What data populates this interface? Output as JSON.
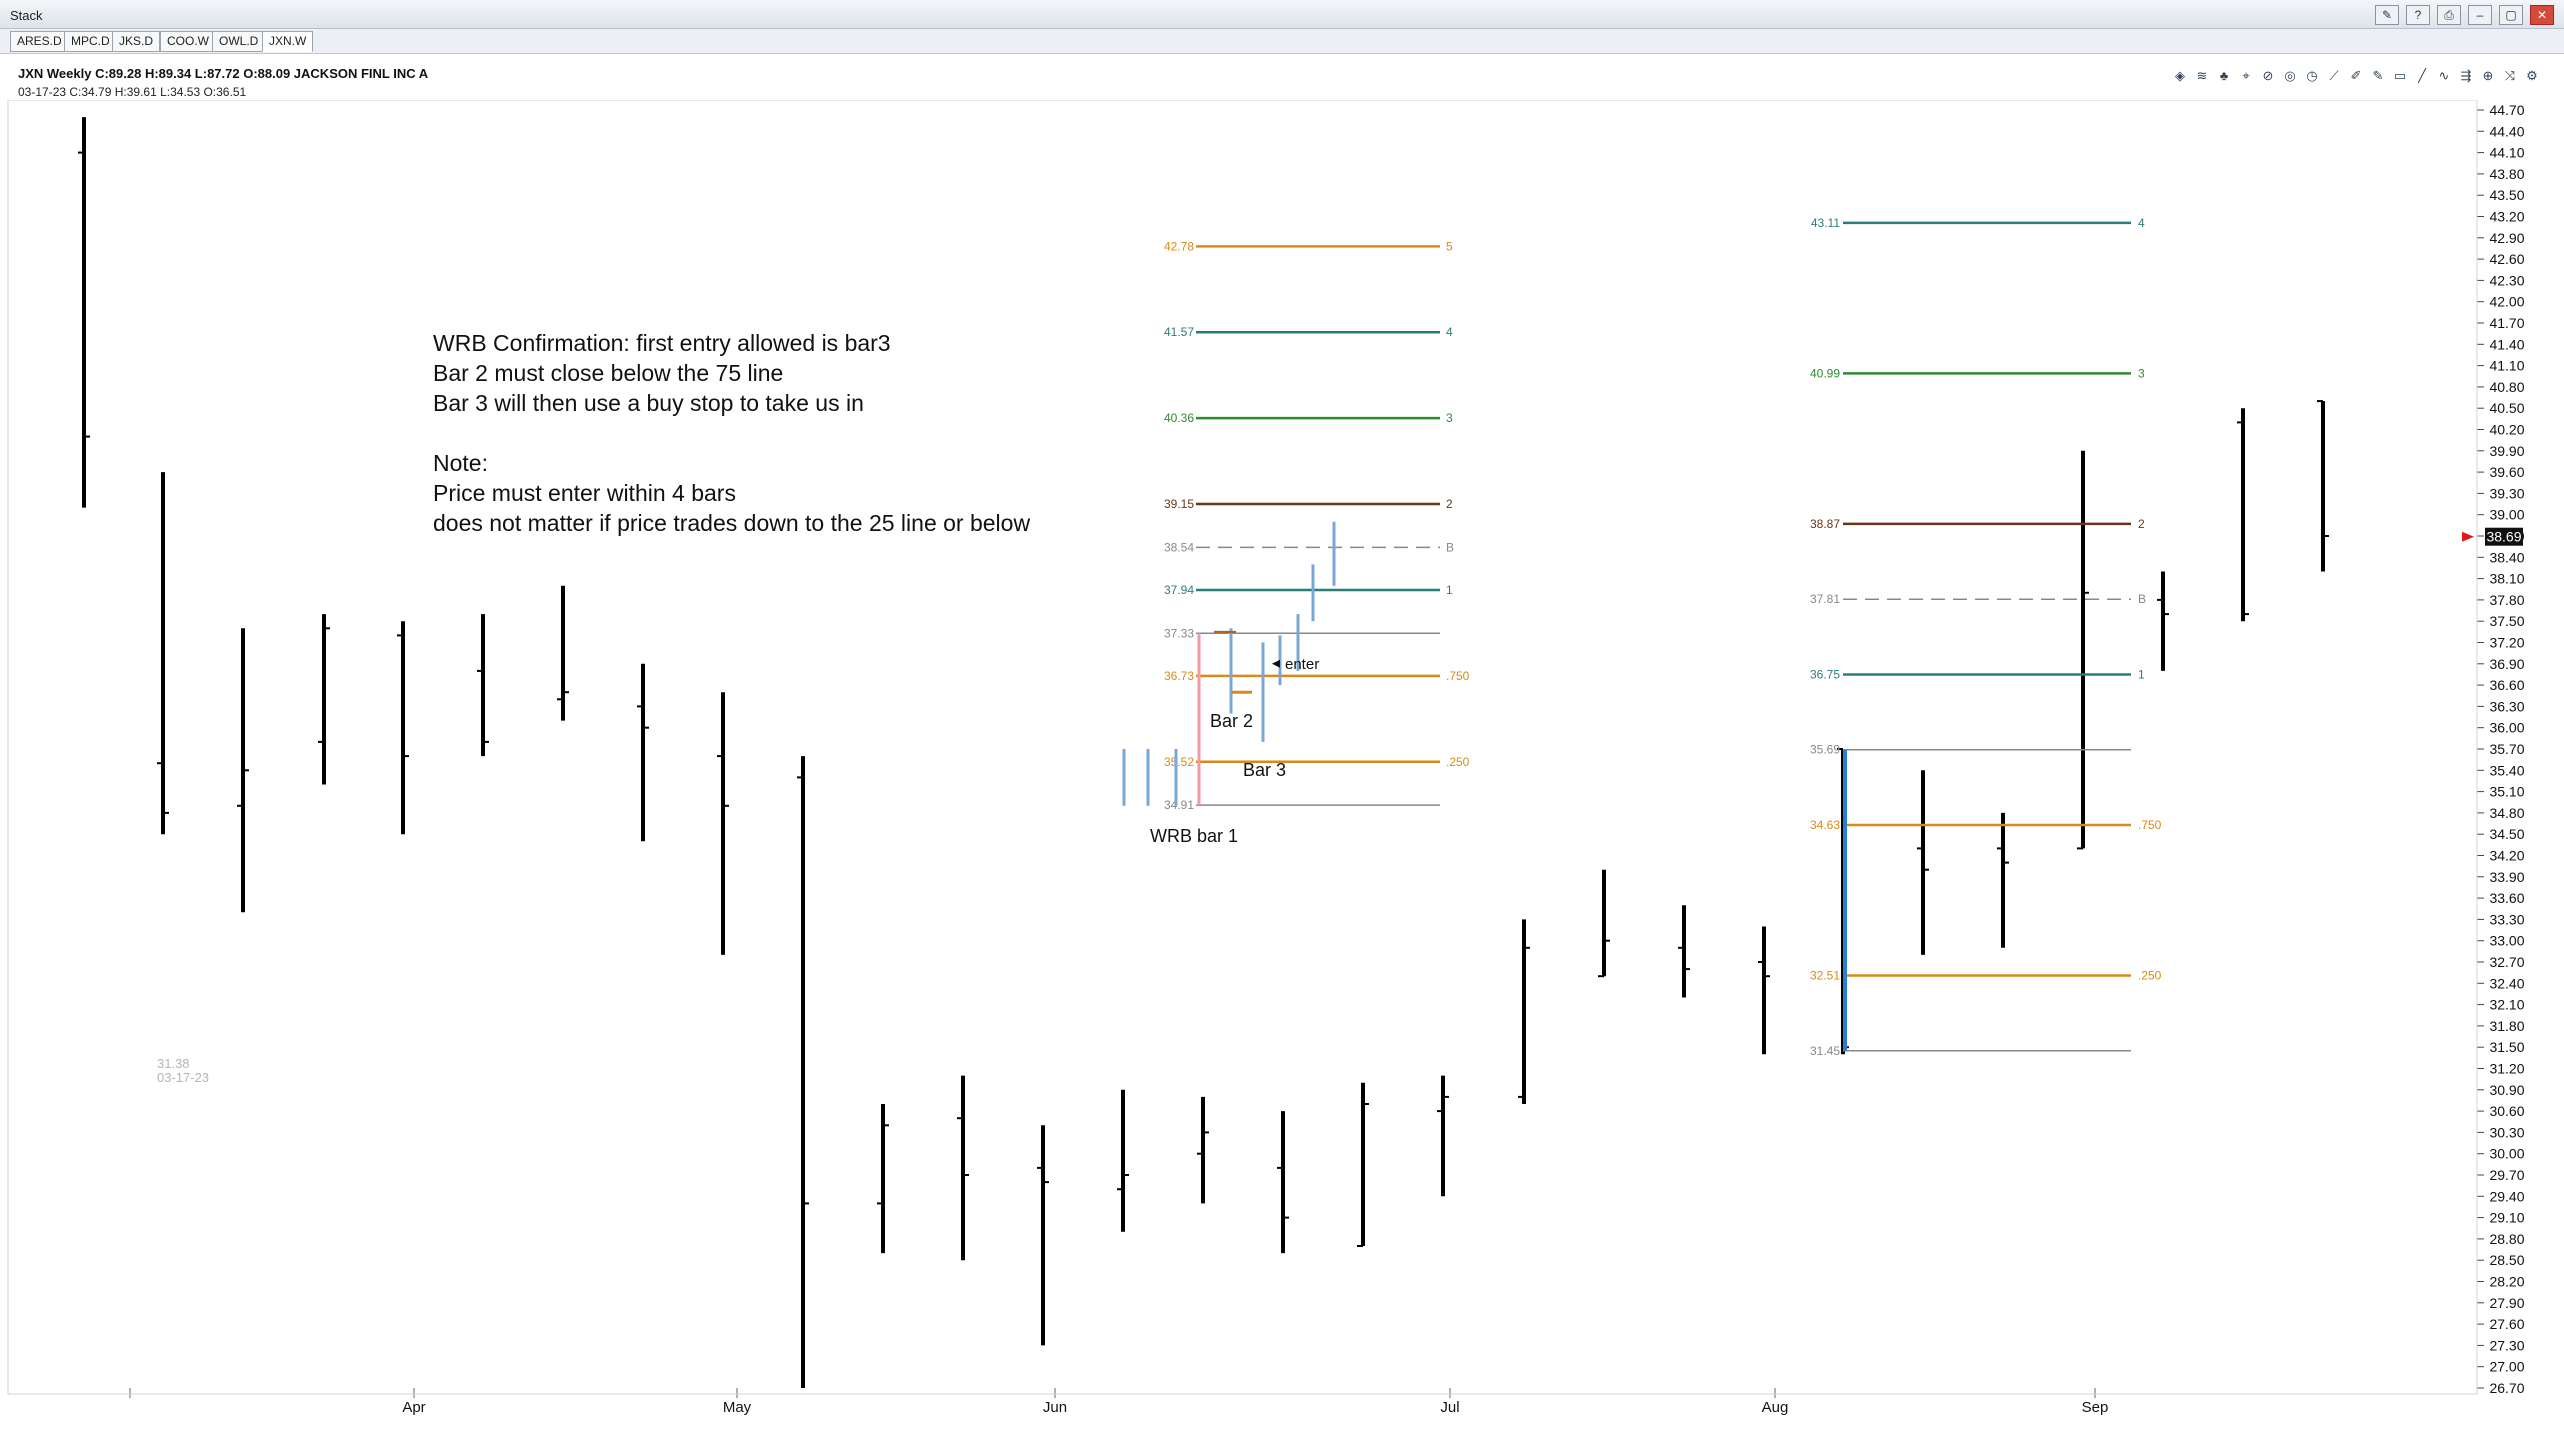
{
  "window": {
    "title": "Stack"
  },
  "tabs": [
    "ARES.D",
    "MPC.D",
    "JKS.D",
    "COO.W",
    "OWL.D",
    "JXN.W"
  ],
  "active_tab": "JXN.W",
  "header": {
    "line1": "JXN Weekly C:89.28 H:89.34 L:87.72 O:88.09 JACKSON FINL INC A",
    "line2": "03-17-23 C:34.79 H:39.61 L:34.53 O:36.51"
  },
  "toolbar_icons": [
    "layers-icon",
    "wave-icon",
    "tree-icon",
    "gann-icon",
    "circle-target-icon",
    "fib-circle-icon",
    "clock-icon",
    "fan-icon",
    "pencil-lines-icon",
    "pencil-icon",
    "rectangle-icon",
    "trendline-icon",
    "wave-line-icon",
    "rays-icon",
    "target-icon",
    "shuffle-icon",
    "settings-icon"
  ],
  "annotation": {
    "lines": [
      "WRB Confirmation: first entry allowed is bar3",
      "Bar 2 must close below the 75 line",
      "Bar 3 will then use a buy stop to take us in",
      "",
      "Note:",
      "Price must enter within 4 bars",
      "does not matter if price trades down to the 25 line or below"
    ]
  },
  "chart_labels": {
    "wrb_bar1": "WRB bar 1",
    "bar2": "Bar 2",
    "bar3": "Bar 3",
    "enter": "enter",
    "ghost_price": "31.38",
    "ghost_date": "03-17-23",
    "last_price": "38.69"
  },
  "colors": {
    "orange": "#d98a16",
    "teal": "#2b7d7a",
    "green": "#2e8b2e",
    "brown": "#6b3416",
    "blue": "#2a7fd4",
    "lightblue": "#7aa7d8",
    "pink": "#f09aa6",
    "gray": "#888888"
  },
  "chart_data": {
    "type": "ohlc",
    "y_axis": {
      "min": 26.7,
      "max": 44.7,
      "ticks": [
        "44.70",
        "44.40",
        "44.10",
        "43.80",
        "43.50",
        "43.20",
        "42.90",
        "42.60",
        "42.30",
        "42.00",
        "41.70",
        "41.40",
        "41.10",
        "40.80",
        "40.50",
        "40.20",
        "39.90",
        "39.60",
        "39.30",
        "39.00",
        "38.70",
        "38.40",
        "38.10",
        "37.80",
        "37.50",
        "37.20",
        "36.90",
        "36.60",
        "36.30",
        "36.00",
        "35.70",
        "35.40",
        "35.10",
        "34.80",
        "34.50",
        "34.20",
        "33.90",
        "33.60",
        "33.30",
        "33.00",
        "32.70",
        "32.40",
        "32.10",
        "31.80",
        "31.50",
        "31.20",
        "30.90",
        "30.60",
        "30.30",
        "30.00",
        "29.70",
        "29.40",
        "29.10",
        "28.80",
        "28.50",
        "28.20",
        "27.90",
        "27.60",
        "27.30",
        "27.00",
        "26.70"
      ]
    },
    "x_axis": {
      "months": [
        "Apr",
        "May",
        "Jun",
        "Jul",
        "Aug",
        "Sep"
      ]
    },
    "bars": [
      {
        "o": 44.1,
        "h": 44.6,
        "l": 39.1,
        "c": 40.1
      },
      {
        "o": 35.5,
        "h": 39.6,
        "l": 34.5,
        "c": 34.8
      },
      {
        "o": 34.9,
        "h": 37.4,
        "l": 33.4,
        "c": 35.4
      },
      {
        "o": 35.8,
        "h": 37.6,
        "l": 35.2,
        "c": 37.4
      },
      {
        "o": 37.3,
        "h": 37.5,
        "l": 34.5,
        "c": 35.6
      },
      {
        "o": 36.8,
        "h": 37.6,
        "l": 35.6,
        "c": 35.8
      },
      {
        "o": 36.4,
        "h": 38.0,
        "l": 36.1,
        "c": 36.5
      },
      {
        "o": 36.3,
        "h": 36.9,
        "l": 34.4,
        "c": 36.0
      },
      {
        "o": 35.6,
        "h": 36.5,
        "l": 32.8,
        "c": 34.9
      },
      {
        "o": 35.3,
        "h": 35.6,
        "l": 26.7,
        "c": 29.3
      },
      {
        "o": 29.3,
        "h": 30.7,
        "l": 28.6,
        "c": 30.4
      },
      {
        "o": 30.5,
        "h": 31.1,
        "l": 28.5,
        "c": 29.7
      },
      {
        "o": 29.8,
        "h": 30.4,
        "l": 27.3,
        "c": 29.6
      },
      {
        "o": 29.5,
        "h": 30.9,
        "l": 28.9,
        "c": 29.7
      },
      {
        "o": 30.0,
        "h": 30.8,
        "l": 29.3,
        "c": 30.3
      },
      {
        "o": 29.8,
        "h": 30.6,
        "l": 28.6,
        "c": 29.1
      },
      {
        "o": 28.7,
        "h": 31.0,
        "l": 28.7,
        "c": 30.7
      },
      {
        "o": 30.6,
        "h": 31.1,
        "l": 29.4,
        "c": 30.8
      },
      {
        "o": 30.8,
        "h": 33.3,
        "l": 30.7,
        "c": 32.9
      },
      {
        "o": 32.5,
        "h": 34.0,
        "l": 32.5,
        "c": 33.0
      },
      {
        "o": 32.9,
        "h": 33.5,
        "l": 32.2,
        "c": 32.6
      },
      {
        "o": 32.7,
        "h": 33.2,
        "l": 31.4,
        "c": 32.5
      },
      {
        "o": 35.7,
        "h": 35.7,
        "l": 31.4,
        "c": 31.5
      },
      {
        "o": 34.3,
        "h": 35.4,
        "l": 32.8,
        "c": 34.0
      },
      {
        "o": 34.3,
        "h": 34.8,
        "l": 32.9,
        "c": 34.1
      },
      {
        "o": 34.3,
        "h": 39.9,
        "l": 34.3,
        "c": 37.9
      },
      {
        "o": 37.8,
        "h": 38.2,
        "l": 36.8,
        "c": 37.6
      },
      {
        "o": 40.3,
        "h": 40.5,
        "l": 37.5,
        "c": 37.6
      },
      {
        "o": 40.6,
        "h": 40.6,
        "l": 38.2,
        "c": 38.7
      }
    ],
    "fib_left": {
      "levels": [
        {
          "label": "42.78",
          "tag": "5",
          "value": 42.78,
          "color": "orange"
        },
        {
          "label": "41.57",
          "tag": "4",
          "value": 41.57,
          "color": "teal"
        },
        {
          "label": "40.36",
          "tag": "3",
          "value": 40.36,
          "color": "green"
        },
        {
          "label": "39.15",
          "tag": "2",
          "value": 39.15,
          "color": "brown"
        },
        {
          "label": "38.54",
          "tag": "B",
          "value": 38.54,
          "color": "gray",
          "dashed": true
        },
        {
          "label": "37.94",
          "tag": "1",
          "value": 37.94,
          "color": "teal"
        },
        {
          "label": "37.33",
          "tag": "",
          "value": 37.33,
          "color": "gray"
        },
        {
          "label": "36.73",
          "tag": ".750",
          "value": 36.73,
          "color": "orange"
        },
        {
          "label": "35.52",
          "tag": ".250",
          "value": 35.52,
          "color": "orange"
        },
        {
          "label": "34.91",
          "tag": "",
          "value": 34.91,
          "color": "gray"
        }
      ]
    },
    "fib_right": {
      "levels": [
        {
          "label": "43.11",
          "tag": "4",
          "value": 43.11,
          "color": "teal"
        },
        {
          "label": "40.99",
          "tag": "3",
          "value": 40.99,
          "color": "green"
        },
        {
          "label": "38.87",
          "tag": "2",
          "value": 38.87,
          "color": "brown"
        },
        {
          "label": "37.81",
          "tag": "B",
          "value": 37.81,
          "color": "gray",
          "dashed": true
        },
        {
          "label": "36.75",
          "tag": "1",
          "value": 36.75,
          "color": "teal"
        },
        {
          "label": "35.69",
          "tag": "",
          "value": 35.69,
          "color": "gray"
        },
        {
          "label": "34.63",
          "tag": ".750",
          "value": 34.63,
          "color": "orange"
        },
        {
          "label": "32.51",
          "tag": ".250",
          "value": 32.51,
          "color": "orange"
        },
        {
          "label": "31.45",
          "tag": "",
          "value": 31.45,
          "color": "gray"
        }
      ]
    }
  }
}
